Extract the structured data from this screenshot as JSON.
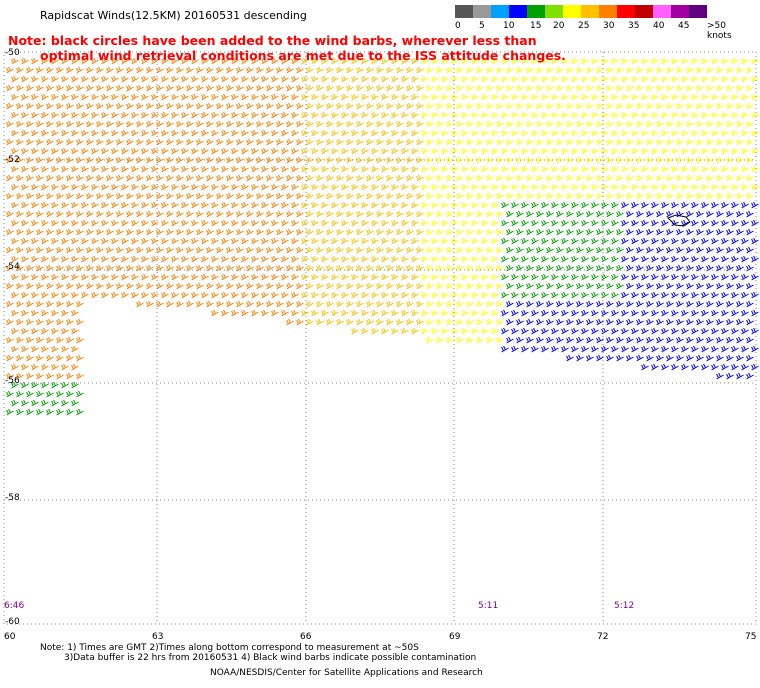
{
  "title": "Rapidscat Winds(12.5KM) 20160531 descending",
  "note_line1": "Note: black circles have been added to the wind barbs, wherever less than",
  "note_line2": "optimal wind retrieval conditions are met due to the ISS attitude changes.",
  "legend": {
    "colors": [
      "#555555",
      "#999999",
      "#00a0ff",
      "#0000ff",
      "#00a000",
      "#80e000",
      "#ffff00",
      "#ffc000",
      "#ff8000",
      "#ff0000",
      "#c00000",
      "#ff60ff",
      "#a000a0",
      "#600080"
    ],
    "labels": [
      "0",
      "5",
      "10",
      "15",
      "20",
      "25",
      "30",
      "35",
      "40",
      "45",
      ">50 knots"
    ]
  },
  "lat_labels": [
    "-50",
    "-52",
    "-54",
    "-56",
    "-58",
    "-60"
  ],
  "lon_labels": [
    "60",
    "63",
    "66",
    "69",
    "72",
    "75"
  ],
  "time_labels": [
    "6:46",
    "5:11",
    "5:12"
  ],
  "footer": {
    "line1": "Note: 1) Times are GMT 2)Times along bottom correspond to measurement at ~50S",
    "line2": "3)Data buffer is 22 hrs from 20160531 4) Black wind barbs indicate possible contamination",
    "line3": "NOAA/NESDIS/Center for Satellite Applications and Research"
  }
}
